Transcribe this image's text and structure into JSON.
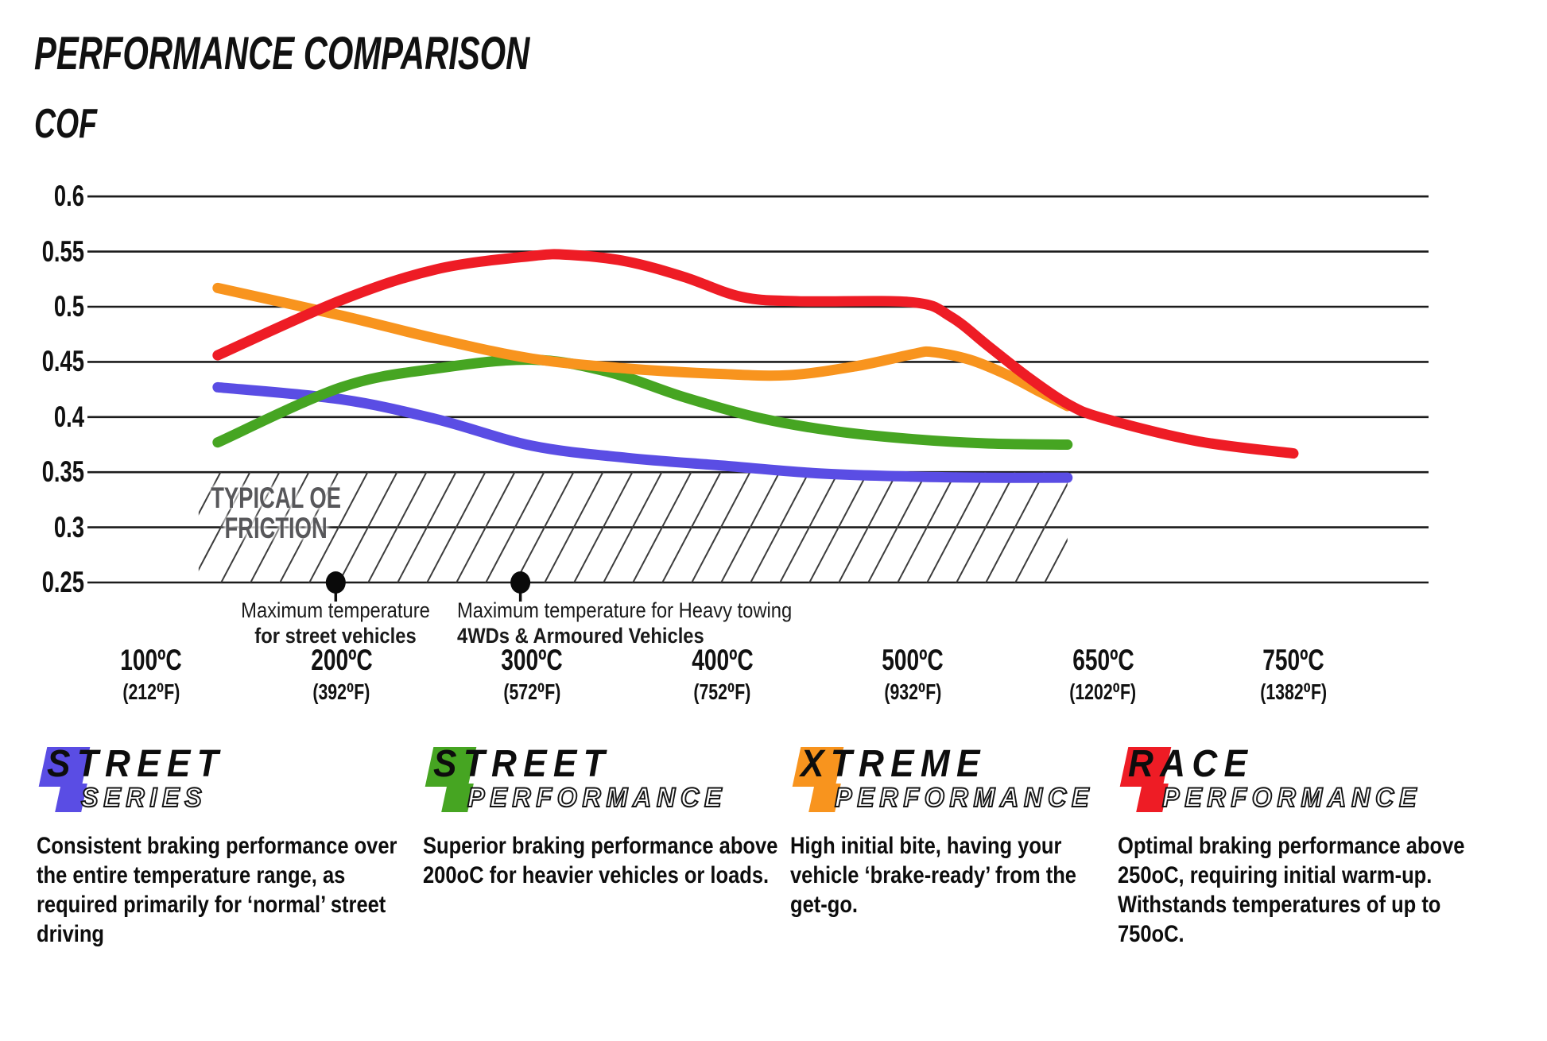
{
  "title": "PERFORMANCE COMPARISON",
  "axis_label": "COF",
  "chart_data": {
    "type": "line",
    "title": "PERFORMANCE COMPARISON",
    "ylabel": "COF",
    "grid": true,
    "y_axis": {
      "min": 0.25,
      "max": 0.625,
      "ticks": [
        "0.6",
        "0.55",
        "0.5",
        "0.45",
        "0.4",
        "0.35",
        "0.3",
        "0.25"
      ]
    },
    "x_axis": {
      "note": "ticks evenly spaced",
      "ticks": [
        {
          "temp": 100,
          "label_c": "100ºC",
          "label_f": "(212⁰F)"
        },
        {
          "temp": 200,
          "label_c": "200ºC",
          "label_f": "(392⁰F)"
        },
        {
          "temp": 300,
          "label_c": "300ºC",
          "label_f": "(572⁰F)"
        },
        {
          "temp": 400,
          "label_c": "400ºC",
          "label_f": "(752⁰F)"
        },
        {
          "temp": 500,
          "label_c": "500ºC",
          "label_f": "(932⁰F)"
        },
        {
          "temp": 650,
          "label_c": "650ºC",
          "label_f": "(1202⁰F)"
        },
        {
          "temp": 750,
          "label_c": "750ºC",
          "label_f": "(1382⁰F)"
        }
      ]
    },
    "series": [
      {
        "name": "Street Series",
        "color": "#5a4de4",
        "points": [
          [
            135,
            0.427
          ],
          [
            200,
            0.416
          ],
          [
            250,
            0.398
          ],
          [
            300,
            0.374
          ],
          [
            350,
            0.363
          ],
          [
            400,
            0.356
          ],
          [
            450,
            0.349
          ],
          [
            500,
            0.346
          ],
          [
            560,
            0.345
          ],
          [
            622,
            0.345
          ]
        ]
      },
      {
        "name": "Street Performance",
        "color": "#46a522",
        "points": [
          [
            135,
            0.377
          ],
          [
            200,
            0.427
          ],
          [
            250,
            0.444
          ],
          [
            300,
            0.452
          ],
          [
            340,
            0.441
          ],
          [
            380,
            0.418
          ],
          [
            420,
            0.399
          ],
          [
            460,
            0.387
          ],
          [
            500,
            0.38
          ],
          [
            560,
            0.376
          ],
          [
            622,
            0.375
          ]
        ]
      },
      {
        "name": "Xtreme Performance",
        "color": "#f8941e",
        "points": [
          [
            135,
            0.517
          ],
          [
            200,
            0.492
          ],
          [
            250,
            0.471
          ],
          [
            300,
            0.453
          ],
          [
            350,
            0.444
          ],
          [
            400,
            0.439
          ],
          [
            435,
            0.438
          ],
          [
            470,
            0.446
          ],
          [
            500,
            0.457
          ],
          [
            515,
            0.459
          ],
          [
            545,
            0.452
          ],
          [
            575,
            0.438
          ],
          [
            600,
            0.423
          ],
          [
            622,
            0.41
          ]
        ]
      },
      {
        "name": "Race Performance",
        "color": "#ee1c25",
        "points": [
          [
            135,
            0.456
          ],
          [
            200,
            0.506
          ],
          [
            250,
            0.534
          ],
          [
            300,
            0.546
          ],
          [
            320,
            0.547
          ],
          [
            350,
            0.541
          ],
          [
            380,
            0.527
          ],
          [
            410,
            0.509
          ],
          [
            440,
            0.505
          ],
          [
            500,
            0.504
          ],
          [
            530,
            0.491
          ],
          [
            560,
            0.464
          ],
          [
            590,
            0.437
          ],
          [
            622,
            0.412
          ],
          [
            650,
            0.399
          ],
          [
            700,
            0.378
          ],
          [
            750,
            0.367
          ]
        ]
      }
    ],
    "oe_band": {
      "label_line1": "TYPICAL OE",
      "label_line2": "FRICTION",
      "cof_top": 0.35,
      "cof_bottom": 0.25,
      "temp_start": 130,
      "temp_end": 622
    },
    "annotations": [
      {
        "temp": 197,
        "cof": 0.25,
        "line1": "Maximum temperature",
        "line2": "for street vehicles",
        "align": "center"
      },
      {
        "temp": 294,
        "cof": 0.25,
        "line1": "Maximum temperature for Heavy towing",
        "line2": "4WDs & Armoured Vehicles",
        "align": "left"
      }
    ]
  },
  "legend": [
    {
      "word1": "STREET",
      "word2": "SERIES",
      "color": "#5a4de4",
      "description": "Consistent braking performance over the entire temperature range, as required primarily for ‘normal’ street driving"
    },
    {
      "word1": "STREET",
      "word2": "PERFORMANCE",
      "color": "#46a522",
      "description": "Superior braking performance above 200oC for heavier vehicles or loads."
    },
    {
      "word1": "XTREME",
      "word2": "PERFORMANCE",
      "color": "#f8941e",
      "description": "High initial bite, having your vehicle ‘brake-ready’ from the get-go."
    },
    {
      "word1": "RACE",
      "word2": "PERFORMANCE",
      "color": "#ee1c25",
      "description": "Optimal braking performance above 250oC, requiring initial warm-up. Withstands temperatures of up to 750oC."
    }
  ]
}
